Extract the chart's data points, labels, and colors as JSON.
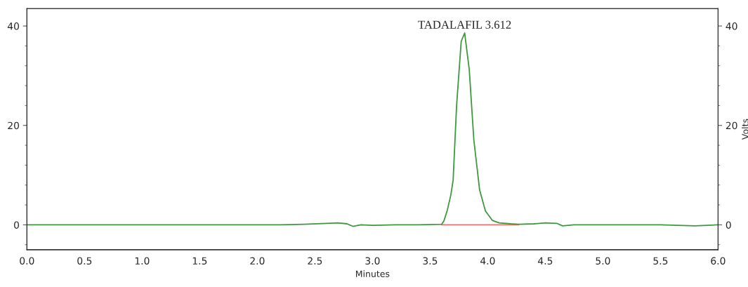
{
  "chart_data": {
    "type": "line",
    "xlabel": "Minutes",
    "y2label": "Volts",
    "series": [
      {
        "color": "#3c9a3c",
        "x": [
          0,
          0.5,
          1.0,
          1.5,
          2.0,
          2.2,
          2.4,
          2.6,
          2.7,
          2.78,
          2.83,
          2.9,
          3.0,
          3.2,
          3.4,
          3.6,
          3.62,
          3.65,
          3.68,
          3.7,
          3.73,
          3.77,
          3.8,
          3.84,
          3.88,
          3.93,
          3.98,
          4.04,
          4.1,
          4.2,
          4.27,
          4.4,
          4.5,
          4.6,
          4.65,
          4.75,
          5.0,
          5.5,
          5.8,
          6.0
        ],
        "values": [
          0,
          0,
          0,
          0,
          0,
          0,
          0.1,
          0.3,
          0.4,
          0.2,
          -0.3,
          0,
          -0.1,
          0,
          0,
          0.1,
          0.8,
          3,
          6,
          9,
          24,
          36.9,
          38.6,
          31.2,
          17,
          7,
          2.8,
          0.9,
          0.4,
          0.2,
          0.1,
          0.2,
          0.4,
          0.3,
          -0.2,
          0,
          0,
          0,
          -0.2,
          0
        ]
      },
      {
        "color": "#f07070",
        "x": [
          3.6,
          4.27
        ],
        "values": [
          0,
          0
        ]
      }
    ],
    "xlim": [
      0,
      6
    ],
    "xticks": [
      {
        "value": 0,
        "label": "0.0"
      },
      0.5,
      {
        "value": 1,
        "label": "1.0"
      },
      1.5,
      {
        "value": 2,
        "label": "2.0"
      },
      2.5,
      {
        "value": 3,
        "label": "3.0"
      },
      3.5,
      {
        "value": 4,
        "label": "4.0"
      },
      4.5,
      {
        "value": 5,
        "label": "5.0"
      },
      5.5,
      {
        "value": 6,
        "label": "6.0"
      }
    ],
    "ylim": [
      -5,
      43.5
    ],
    "yticks": [
      0,
      20,
      40
    ],
    "y2lim": [
      -5,
      43.5
    ],
    "y2ticks": [
      0,
      20,
      40
    ],
    "annotations": [
      {
        "text": "TADALAFIL 3.612",
        "x": 3.8,
        "y": 38.6
      }
    ],
    "grid": false,
    "legend": false,
    "marker": "none",
    "line_style": "solid"
  }
}
